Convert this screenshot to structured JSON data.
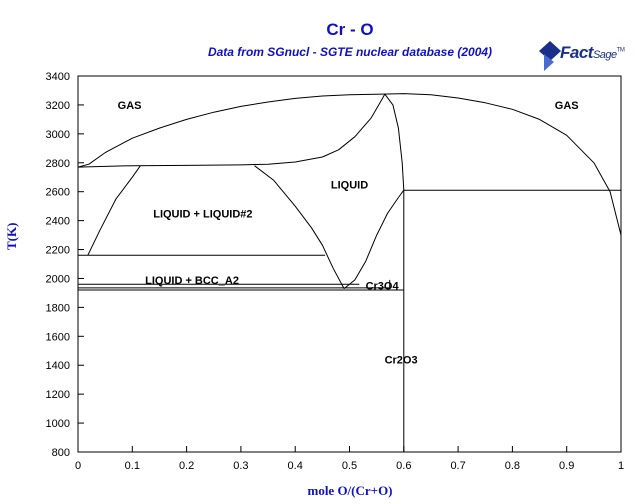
{
  "chart_data": {
    "type": "line",
    "title": "Cr - O",
    "subtitle": "Data from SGnucl - SGTE nuclear database (2004)",
    "xlabel": "mole O/(Cr+O)",
    "ylabel": "T(K)",
    "xlim": [
      0,
      1
    ],
    "ylim": [
      800,
      3400
    ],
    "xticks": [
      0,
      0.1,
      0.2,
      0.3,
      0.4,
      0.5,
      0.6,
      0.7,
      0.8,
      0.9,
      1
    ],
    "xtick_labels": [
      "0",
      "0.1",
      "0.2",
      "0.3",
      "0.4",
      "0.5",
      "0.6",
      "0.7",
      "0.8",
      "0.9",
      "1"
    ],
    "yticks": [
      800,
      1000,
      1200,
      1400,
      1600,
      1800,
      2000,
      2200,
      2400,
      2600,
      2800,
      3000,
      3200,
      3400
    ],
    "ytick_labels": [
      "800",
      "1000",
      "1200",
      "1400",
      "1600",
      "1800",
      "2000",
      "2200",
      "2400",
      "2600",
      "2800",
      "3000",
      "3200",
      "3400"
    ],
    "grid": false,
    "series": [
      {
        "values": [
          [
            0.0,
            2770
          ],
          [
            0.02,
            2790
          ],
          [
            0.05,
            2870
          ],
          [
            0.1,
            2970
          ],
          [
            0.15,
            3040
          ],
          [
            0.2,
            3100
          ],
          [
            0.25,
            3150
          ],
          [
            0.3,
            3190
          ],
          [
            0.35,
            3220
          ],
          [
            0.4,
            3245
          ],
          [
            0.45,
            3262
          ],
          [
            0.5,
            3270
          ],
          [
            0.56,
            3275
          ],
          [
            0.6,
            3278
          ],
          [
            0.65,
            3270
          ],
          [
            0.7,
            3248
          ],
          [
            0.75,
            3215
          ],
          [
            0.8,
            3170
          ],
          [
            0.85,
            3100
          ],
          [
            0.9,
            2990
          ],
          [
            0.95,
            2800
          ],
          [
            0.98,
            2600
          ],
          [
            1.0,
            2300
          ]
        ]
      },
      {
        "values": [
          [
            0.0,
            2770
          ],
          [
            0.1,
            2780
          ],
          [
            0.2,
            2782
          ],
          [
            0.3,
            2785
          ],
          [
            0.35,
            2790
          ],
          [
            0.4,
            2805
          ],
          [
            0.45,
            2840
          ],
          [
            0.48,
            2890
          ],
          [
            0.51,
            2980
          ],
          [
            0.54,
            3110
          ],
          [
            0.56,
            3240
          ],
          [
            0.565,
            3275
          ]
        ]
      },
      {
        "values": [
          [
            0.565,
            3275
          ],
          [
            0.58,
            3200
          ],
          [
            0.59,
            3040
          ],
          [
            0.597,
            2800
          ],
          [
            0.6,
            2610
          ],
          [
            0.6,
            800
          ]
        ]
      },
      {
        "values": [
          [
            0.018,
            2160
          ],
          [
            0.04,
            2330
          ],
          [
            0.07,
            2550
          ],
          [
            0.1,
            2700
          ],
          [
            0.115,
            2780
          ]
        ]
      },
      {
        "values": [
          [
            0.325,
            2780
          ],
          [
            0.36,
            2680
          ],
          [
            0.4,
            2500
          ],
          [
            0.43,
            2350
          ],
          [
            0.45,
            2230
          ],
          [
            0.47,
            2070
          ],
          [
            0.49,
            1930
          ]
        ]
      },
      {
        "values": [
          [
            0.49,
            1930
          ],
          [
            0.51,
            1990
          ],
          [
            0.53,
            2120
          ],
          [
            0.55,
            2300
          ],
          [
            0.57,
            2450
          ],
          [
            0.59,
            2560
          ],
          [
            0.6,
            2610
          ]
        ]
      },
      {
        "values": [
          [
            0.6,
            2610
          ],
          [
            1.0,
            2610
          ]
        ]
      },
      {
        "values": [
          [
            0.0,
            2160
          ],
          [
            0.018,
            2160
          ],
          [
            0.455,
            2160
          ]
        ]
      },
      {
        "values": [
          [
            0.0,
            1960
          ],
          [
            0.518,
            1960
          ]
        ]
      },
      {
        "values": [
          [
            0.0,
            1935
          ],
          [
            0.574,
            1935
          ],
          [
            0.574,
            1990
          ]
        ]
      },
      {
        "values": [
          [
            0.0,
            1920
          ],
          [
            0.6,
            1920
          ]
        ]
      }
    ],
    "annotations": [
      {
        "text": "GAS",
        "x": 0.095,
        "y": 3200
      },
      {
        "text": "GAS",
        "x": 0.9,
        "y": 3200
      },
      {
        "text": "LIQUID",
        "x": 0.5,
        "y": 2650
      },
      {
        "text": "LIQUID + LIQUID#2",
        "x": 0.23,
        "y": 2450
      },
      {
        "text": "LIQUID + BCC_A2",
        "x": 0.21,
        "y": 1990
      },
      {
        "text": "Cr3O4",
        "x": 0.56,
        "y": 1950
      },
      {
        "text": "Cr2O3",
        "x": 0.595,
        "y": 1440
      }
    ]
  },
  "logo": {
    "main": "Fact",
    "sage": "Sage",
    "tm": "TM"
  }
}
